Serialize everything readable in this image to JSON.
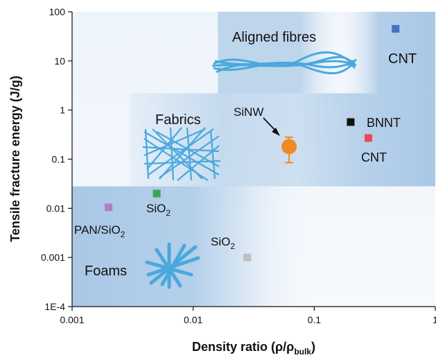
{
  "chart_data": {
    "type": "scatter",
    "xscale": "log",
    "yscale": "log",
    "xlim": [
      0.001,
      1
    ],
    "ylim": [
      0.0001,
      100
    ],
    "xlabel": {
      "main": "Density ratio (ρ/ρ",
      "sub": "bulk",
      "close": ")"
    },
    "ylabel": "Tensile fracture energy (J/g)",
    "xticks": [
      {
        "value": 0.001,
        "label": "0.001"
      },
      {
        "value": 0.01,
        "label": "0.01"
      },
      {
        "value": 0.1,
        "label": "0.1"
      },
      {
        "value": 1,
        "label": "1"
      }
    ],
    "yticks": [
      {
        "value": 100,
        "label": "100"
      },
      {
        "value": 10,
        "label": "10"
      },
      {
        "value": 1,
        "label": "1"
      },
      {
        "value": 0.1,
        "label": "0.1"
      },
      {
        "value": 0.01,
        "label": "0.01"
      },
      {
        "value": 0.001,
        "label": "0.001"
      },
      {
        "value": 0.0001,
        "label": "1E-4"
      }
    ],
    "grid": false,
    "regions": [
      {
        "name": "Aligned fibres",
        "x": [
          0.016,
          1
        ],
        "y": [
          2.2,
          100
        ],
        "color": "#a9c8e6"
      },
      {
        "name": "Fabrics",
        "x": [
          0.003,
          1
        ],
        "y": [
          0.028,
          2.2
        ],
        "color": "#a9c8e6"
      },
      {
        "name": "Foams",
        "x": [
          0.001,
          0.1
        ],
        "y": [
          0.0001,
          0.028
        ],
        "color": "#a9c8e6"
      }
    ],
    "points": [
      {
        "label": "CNT",
        "x": 0.47,
        "y": 45,
        "color": "#4472c4",
        "marker": "square"
      },
      {
        "label": "BNNT",
        "x": 0.2,
        "y": 0.57,
        "color": "#111111",
        "marker": "square"
      },
      {
        "label": "CNT",
        "x": 0.28,
        "y": 0.27,
        "color": "#e8484f",
        "marker": "square"
      },
      {
        "label": "SiO2",
        "x": 0.005,
        "y": 0.02,
        "color": "#3aa655",
        "marker": "square"
      },
      {
        "label": "PAN/SiO2",
        "x": 0.002,
        "y": 0.0105,
        "color": "#b07cc6",
        "marker": "square"
      },
      {
        "label": "SiO2",
        "x": 0.028,
        "y": 0.001,
        "color": "#bfbfbf",
        "marker": "square"
      },
      {
        "label": "SiNW",
        "x": 0.062,
        "y": 0.18,
        "color": "#f08a24",
        "marker": "circle",
        "err_low": 0.085,
        "err_high": 0.28
      }
    ],
    "annotations": {
      "aligned": "Aligned fibres",
      "fabrics": "Fabrics",
      "foams": "Foams",
      "cnt_top": "CNT",
      "bnnt": "BNNT",
      "cnt_red": "CNT",
      "sinw": "SiNW",
      "sio2_green": {
        "main": "SiO",
        "sub": "2"
      },
      "pan": {
        "main": "PAN/SiO",
        "sub": "2"
      },
      "sio2_gray": {
        "main": "SiO",
        "sub": "2"
      }
    },
    "colors": {
      "region": "#a9c8e6",
      "fibre": "#4aa8dd",
      "axis": "#111111"
    }
  }
}
